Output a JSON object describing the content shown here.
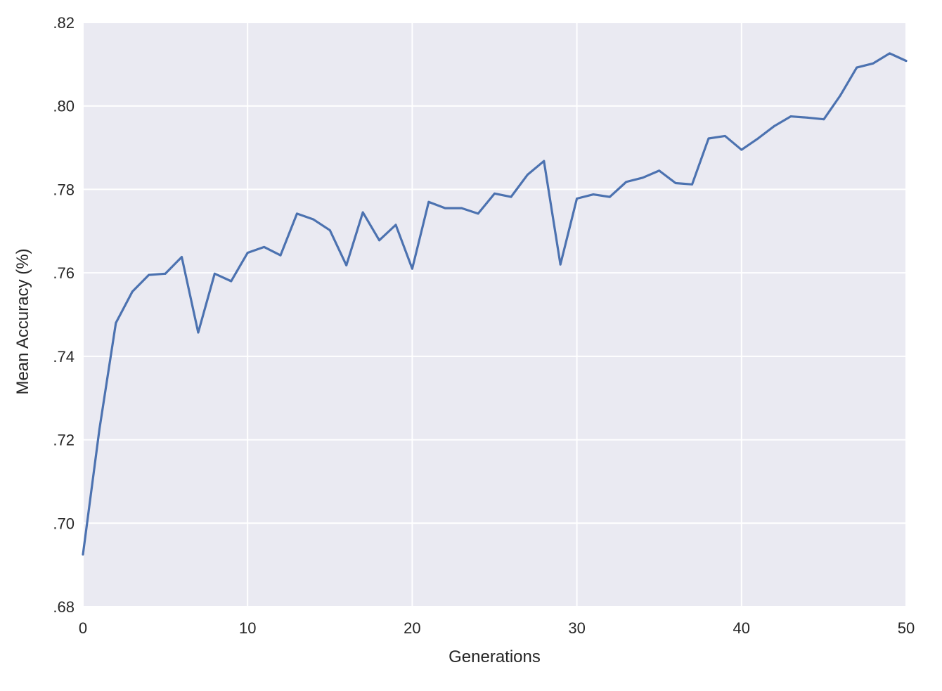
{
  "chart_data": {
    "type": "line",
    "title": "",
    "xlabel": "Generations",
    "ylabel": "Mean Accuracy (%)",
    "xlim": [
      0,
      50
    ],
    "ylim": [
      0.68,
      0.82
    ],
    "x_ticks": [
      0,
      10,
      20,
      30,
      40,
      50
    ],
    "x_tick_labels": [
      "0",
      "10",
      "20",
      "30",
      "40",
      "50"
    ],
    "y_ticks": [
      0.68,
      0.7,
      0.72,
      0.74,
      0.76,
      0.78,
      0.8,
      0.82
    ],
    "y_tick_labels": [
      ".68",
      ".70",
      ".72",
      ".74",
      ".76",
      ".78",
      ".80",
      ".82"
    ],
    "grid": true,
    "background": "#EAEAF2",
    "grid_color": "#FFFFFF",
    "series": [
      {
        "color": "#4C72B0",
        "x": [
          0,
          1,
          2,
          3,
          4,
          5,
          6,
          7,
          8,
          9,
          10,
          11,
          12,
          13,
          14,
          15,
          16,
          17,
          18,
          19,
          20,
          21,
          22,
          23,
          24,
          25,
          26,
          27,
          28,
          29,
          30,
          31,
          32,
          33,
          34,
          35,
          36,
          37,
          38,
          39,
          40,
          41,
          42,
          43,
          44,
          45,
          46,
          47,
          48,
          49,
          50
        ],
        "y": [
          0.6925,
          0.7225,
          0.748,
          0.7555,
          0.7595,
          0.7598,
          0.7638,
          0.7457,
          0.7598,
          0.758,
          0.7648,
          0.7662,
          0.7642,
          0.7742,
          0.7728,
          0.7702,
          0.7618,
          0.7745,
          0.7678,
          0.7715,
          0.761,
          0.777,
          0.7755,
          0.7755,
          0.7742,
          0.779,
          0.7782,
          0.7835,
          0.7868,
          0.762,
          0.7778,
          0.7788,
          0.7782,
          0.7818,
          0.7828,
          0.7845,
          0.7815,
          0.7812,
          0.7922,
          0.7928,
          0.7895,
          0.7922,
          0.7952,
          0.7975,
          0.7972,
          0.7968,
          0.8025,
          0.8092,
          0.8102,
          0.8126,
          0.8108
        ]
      }
    ]
  }
}
